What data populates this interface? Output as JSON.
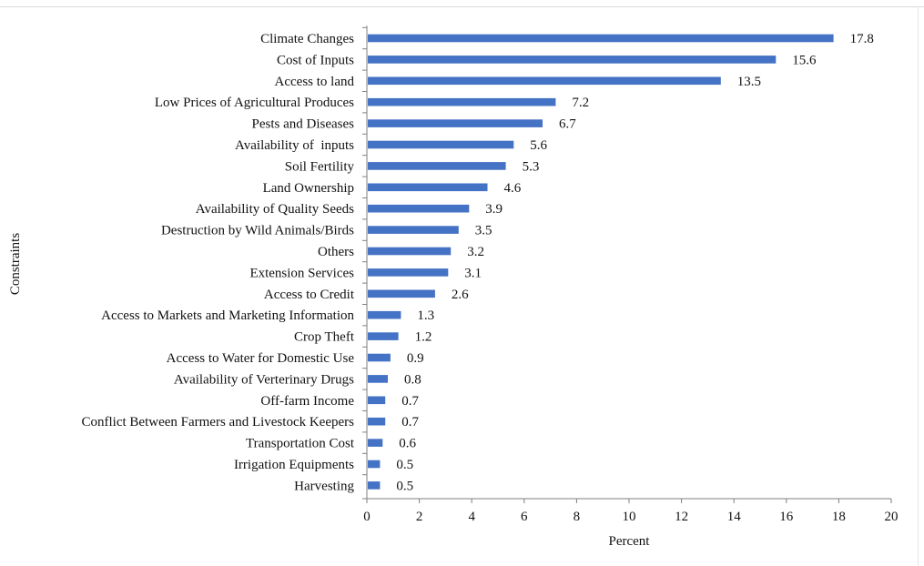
{
  "chart_data": {
    "type": "bar",
    "orientation": "horizontal",
    "xlabel": "Percent",
    "ylabel": "Constraints",
    "xlim": [
      0,
      20
    ],
    "x_ticks": [
      "0",
      "2",
      "4",
      "6",
      "8",
      "10",
      "12",
      "14",
      "16",
      "18",
      "20"
    ],
    "bar_color": "#4472C4",
    "grid": false,
    "categories": [
      "Climate Changes",
      "Cost of Inputs",
      "Access to land",
      "Low Prices of Agricultural Produces",
      "Pests and Diseases",
      "Availability of  inputs",
      "Soil Fertility",
      "Land Ownership",
      "Availability of Quality Seeds",
      "Destruction by Wild Animals/Birds",
      "Others",
      "Extension Services",
      "Access to Credit",
      "Access to Markets and Marketing Information",
      "Crop Theft",
      "Access to Water for Domestic Use",
      "Availability of Verterinary Drugs",
      "Off-farm Income",
      "Conflict Between Farmers and Livestock Keepers",
      "Transportation Cost",
      "Irrigation Equipments",
      "Harvesting"
    ],
    "values": [
      17.8,
      15.6,
      13.5,
      7.2,
      6.7,
      5.6,
      5.3,
      4.6,
      3.9,
      3.5,
      3.2,
      3.1,
      2.6,
      1.3,
      1.2,
      0.9,
      0.8,
      0.7,
      0.7,
      0.6,
      0.5,
      0.5
    ],
    "value_labels": [
      "17.8",
      "15.6",
      "13.5",
      "7.2",
      "6.7",
      "5.6",
      "5.3",
      "4.6",
      "3.9",
      "3.5",
      "3.2",
      "3.1",
      "2.6",
      "1.3",
      "1.2",
      "0.9",
      "0.8",
      "0.7",
      "0.7",
      "0.6",
      "0.5",
      "0.5"
    ]
  }
}
